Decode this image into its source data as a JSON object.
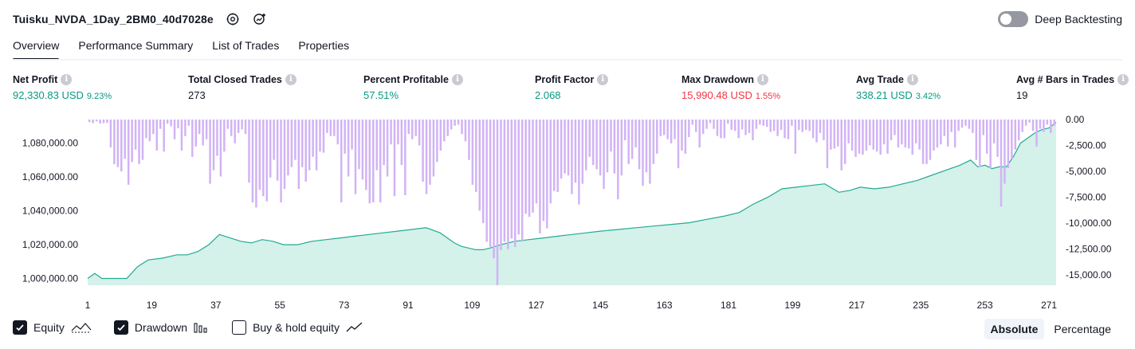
{
  "header": {
    "strategy_name": "Tuisku_NVDA_1Day_2BM0_40d7028e",
    "deep_backtesting_label": "Deep Backtesting"
  },
  "tabs": [
    {
      "label": "Overview",
      "active": true
    },
    {
      "label": "Performance Summary",
      "active": false
    },
    {
      "label": "List of Trades",
      "active": false
    },
    {
      "label": "Properties",
      "active": false
    }
  ],
  "metrics": [
    {
      "label": "Net Profit",
      "value": "92,330.83 USD",
      "pct": "9.23%",
      "tone": "pos"
    },
    {
      "label": "Total Closed Trades",
      "value": "273",
      "pct": "",
      "tone": "neutral"
    },
    {
      "label": "Percent Profitable",
      "value": "57.51%",
      "pct": "",
      "tone": "pos"
    },
    {
      "label": "Profit Factor",
      "value": "2.068",
      "pct": "",
      "tone": "pos"
    },
    {
      "label": "Max Drawdown",
      "value": "15,990.48 USD",
      "pct": "1.55%",
      "tone": "neg"
    },
    {
      "label": "Avg Trade",
      "value": "338.21 USD",
      "pct": "3.42%",
      "tone": "pos"
    },
    {
      "label": "Avg # Bars in Trades",
      "value": "19",
      "pct": "",
      "tone": "neutral"
    }
  ],
  "legend": {
    "equity": "Equity",
    "drawdown": "Drawdown",
    "buy_hold": "Buy & hold equity"
  },
  "modes": {
    "absolute": "Absolute",
    "percentage": "Percentage"
  },
  "colors": {
    "equity_line": "#22ab94",
    "equity_fill": "#cdeee6",
    "drawdown_bar": "#d1b3f5",
    "positive": "#089981",
    "negative": "#f23645"
  },
  "chart_data": {
    "type": "area",
    "left_axis": {
      "ticks": [
        "1,000,000.00",
        "1,020,000.00",
        "1,040,000.00",
        "1,060,000.00",
        "1,080,000.00"
      ],
      "range": [
        996000,
        1094000
      ]
    },
    "right_axis": {
      "ticks": [
        "0.00",
        "-2,500.00",
        "-5,000.00",
        "-7,500.00",
        "-10,000.00",
        "-12,500.00",
        "-15,000.00"
      ],
      "range": [
        -16000,
        0
      ]
    },
    "x_ticks": [
      "1",
      "19",
      "37",
      "55",
      "73",
      "91",
      "109",
      "127",
      "145",
      "163",
      "181",
      "199",
      "217",
      "235",
      "253",
      "271"
    ],
    "x_range": [
      1,
      273
    ],
    "equity_series": {
      "name": "Equity",
      "points": [
        [
          1,
          1000000
        ],
        [
          3,
          1003000
        ],
        [
          5,
          1000000
        ],
        [
          12,
          1000000
        ],
        [
          15,
          1007000
        ],
        [
          18,
          1011000
        ],
        [
          22,
          1012000
        ],
        [
          26,
          1014000
        ],
        [
          29,
          1014000
        ],
        [
          32,
          1016000
        ],
        [
          35,
          1020000
        ],
        [
          38,
          1026000
        ],
        [
          41,
          1024000
        ],
        [
          44,
          1022000
        ],
        [
          47,
          1021000
        ],
        [
          50,
          1023000
        ],
        [
          53,
          1022000
        ],
        [
          56,
          1020000
        ],
        [
          60,
          1020000
        ],
        [
          64,
          1022000
        ],
        [
          68,
          1023000
        ],
        [
          72,
          1024000
        ],
        [
          76,
          1025000
        ],
        [
          80,
          1026000
        ],
        [
          84,
          1027000
        ],
        [
          88,
          1028000
        ],
        [
          92,
          1029000
        ],
        [
          96,
          1030000
        ],
        [
          100,
          1027000
        ],
        [
          102,
          1024000
        ],
        [
          104,
          1021000
        ],
        [
          106,
          1019000
        ],
        [
          108,
          1018000
        ],
        [
          110,
          1017000
        ],
        [
          112,
          1017000
        ],
        [
          114,
          1018000
        ],
        [
          117,
          1020000
        ],
        [
          121,
          1022000
        ],
        [
          125,
          1023000
        ],
        [
          129,
          1024000
        ],
        [
          133,
          1025000
        ],
        [
          137,
          1026000
        ],
        [
          141,
          1027000
        ],
        [
          145,
          1028000
        ],
        [
          150,
          1029000
        ],
        [
          155,
          1030000
        ],
        [
          160,
          1031000
        ],
        [
          165,
          1032000
        ],
        [
          170,
          1033000
        ],
        [
          175,
          1035000
        ],
        [
          180,
          1037000
        ],
        [
          184,
          1039000
        ],
        [
          188,
          1044000
        ],
        [
          192,
          1048000
        ],
        [
          196,
          1053000
        ],
        [
          200,
          1054000
        ],
        [
          204,
          1055000
        ],
        [
          208,
          1056000
        ],
        [
          212,
          1051000
        ],
        [
          215,
          1052000
        ],
        [
          218,
          1054000
        ],
        [
          222,
          1053000
        ],
        [
          226,
          1054000
        ],
        [
          230,
          1056000
        ],
        [
          234,
          1058000
        ],
        [
          238,
          1061000
        ],
        [
          242,
          1064000
        ],
        [
          246,
          1067000
        ],
        [
          249,
          1070000
        ],
        [
          251,
          1066000
        ],
        [
          253,
          1067000
        ],
        [
          255,
          1065000
        ],
        [
          257,
          1066000
        ],
        [
          259,
          1066000
        ],
        [
          261,
          1072000
        ],
        [
          263,
          1080000
        ],
        [
          265,
          1083000
        ],
        [
          267,
          1086000
        ],
        [
          269,
          1088000
        ],
        [
          271,
          1089000
        ],
        [
          273,
          1092330.83
        ]
      ]
    },
    "drawdown_series": {
      "name": "Drawdown",
      "values": [
        -250,
        -350,
        -180,
        -380,
        -350,
        -320,
        -2700,
        -4300,
        -4600,
        -5000,
        -3800,
        -6300,
        -4100,
        -2900,
        -4300,
        -3900,
        -1800,
        -2100,
        -1400,
        -3000,
        -900,
        -3100,
        -400,
        -650,
        -1900,
        -850,
        -3000,
        -1600,
        -600,
        -3600,
        -2600,
        -1400,
        -2500,
        -1900,
        -6200,
        -4900,
        -3500,
        -5500,
        -3100,
        -900,
        -1600,
        -2300,
        -1300,
        -950,
        -1400,
        -6100,
        -8000,
        -8500,
        -6800,
        -7400,
        -7900,
        -5600,
        -3900,
        -5900,
        -8000,
        -6700,
        -5400,
        -4600,
        -3900,
        -6700,
        -4600,
        -6000,
        -4900,
        -3600,
        -4900,
        -3100,
        -3200,
        -1300,
        -1600,
        -1600,
        -2400,
        -8000,
        -3300,
        -5500,
        -2900,
        -7200,
        -4800,
        -5800,
        -6800,
        -8100,
        -8000,
        -4900,
        -8000,
        -4400,
        -5500,
        -2400,
        -7400,
        -2400,
        -4400,
        -7300,
        -1400,
        -1900,
        -1600,
        -2500,
        -6000,
        -7200,
        -6300,
        -5500,
        -4100,
        -3000,
        -2100,
        -1600,
        -950,
        -600,
        -500,
        -1400,
        -2100,
        -3900,
        -6300,
        -7000,
        -8800,
        -10000,
        -11800,
        -12300,
        -13400,
        -15990,
        -12600,
        -11800,
        -12500,
        -11500,
        -12300,
        -11100,
        -11800,
        -9100,
        -9400,
        -9000,
        -8100,
        -11000,
        -9800,
        -10500,
        -8100,
        -6900,
        -7000,
        -5700,
        -5200,
        -5400,
        -7200,
        -6100,
        -8200,
        -6200,
        -4900,
        -3600,
        -4400,
        -4800,
        -5400,
        -6700,
        -5100,
        -3100,
        -5200,
        -7700,
        -5400,
        -2000,
        -4300,
        -3800,
        -2700,
        -4800,
        -6400,
        -5100,
        -6200,
        -4300,
        -3300,
        -1600,
        -1500,
        -1900,
        -2300,
        -1900,
        -4700,
        -3000,
        -3300,
        -1700,
        -500,
        -1200,
        -2700,
        -1400,
        -900,
        -350,
        -900,
        -1600,
        -1800,
        -1800,
        -400,
        -1000,
        -1100,
        -1800,
        -950,
        -1500,
        -1300,
        -2000,
        -900,
        -500,
        -600,
        -700,
        -1200,
        -1100,
        -1600,
        -1000,
        -1800,
        -1900,
        -600,
        -3300,
        -1000,
        -1200,
        -1000,
        -1100,
        -1800,
        -2200,
        -1300,
        -2000,
        -4700,
        -2900,
        -2800,
        -2600,
        -4900,
        -4300,
        -2300,
        -3000,
        -3600,
        -3300,
        -3400,
        -3000,
        -2500,
        -2900,
        -3100,
        -3400,
        -2400,
        -3300,
        -2000,
        -1500,
        -2700,
        -2400,
        -2700,
        -2800,
        -3400,
        -2300,
        -2900,
        -4300,
        -4300,
        -3900,
        -3000,
        -2700,
        -2400,
        -1600,
        -2600,
        -1200,
        -2700,
        -1100,
        -800,
        -600,
        -900,
        -1300,
        -3900,
        -4600,
        -1500,
        -3300,
        -4700,
        -2300,
        -3600,
        -8400,
        -6200,
        -4700,
        -3800,
        -2900,
        -2000,
        -1200,
        -600,
        -300,
        -1100,
        -2600,
        -900,
        -1200,
        -500,
        -1300,
        -600
      ]
    }
  }
}
